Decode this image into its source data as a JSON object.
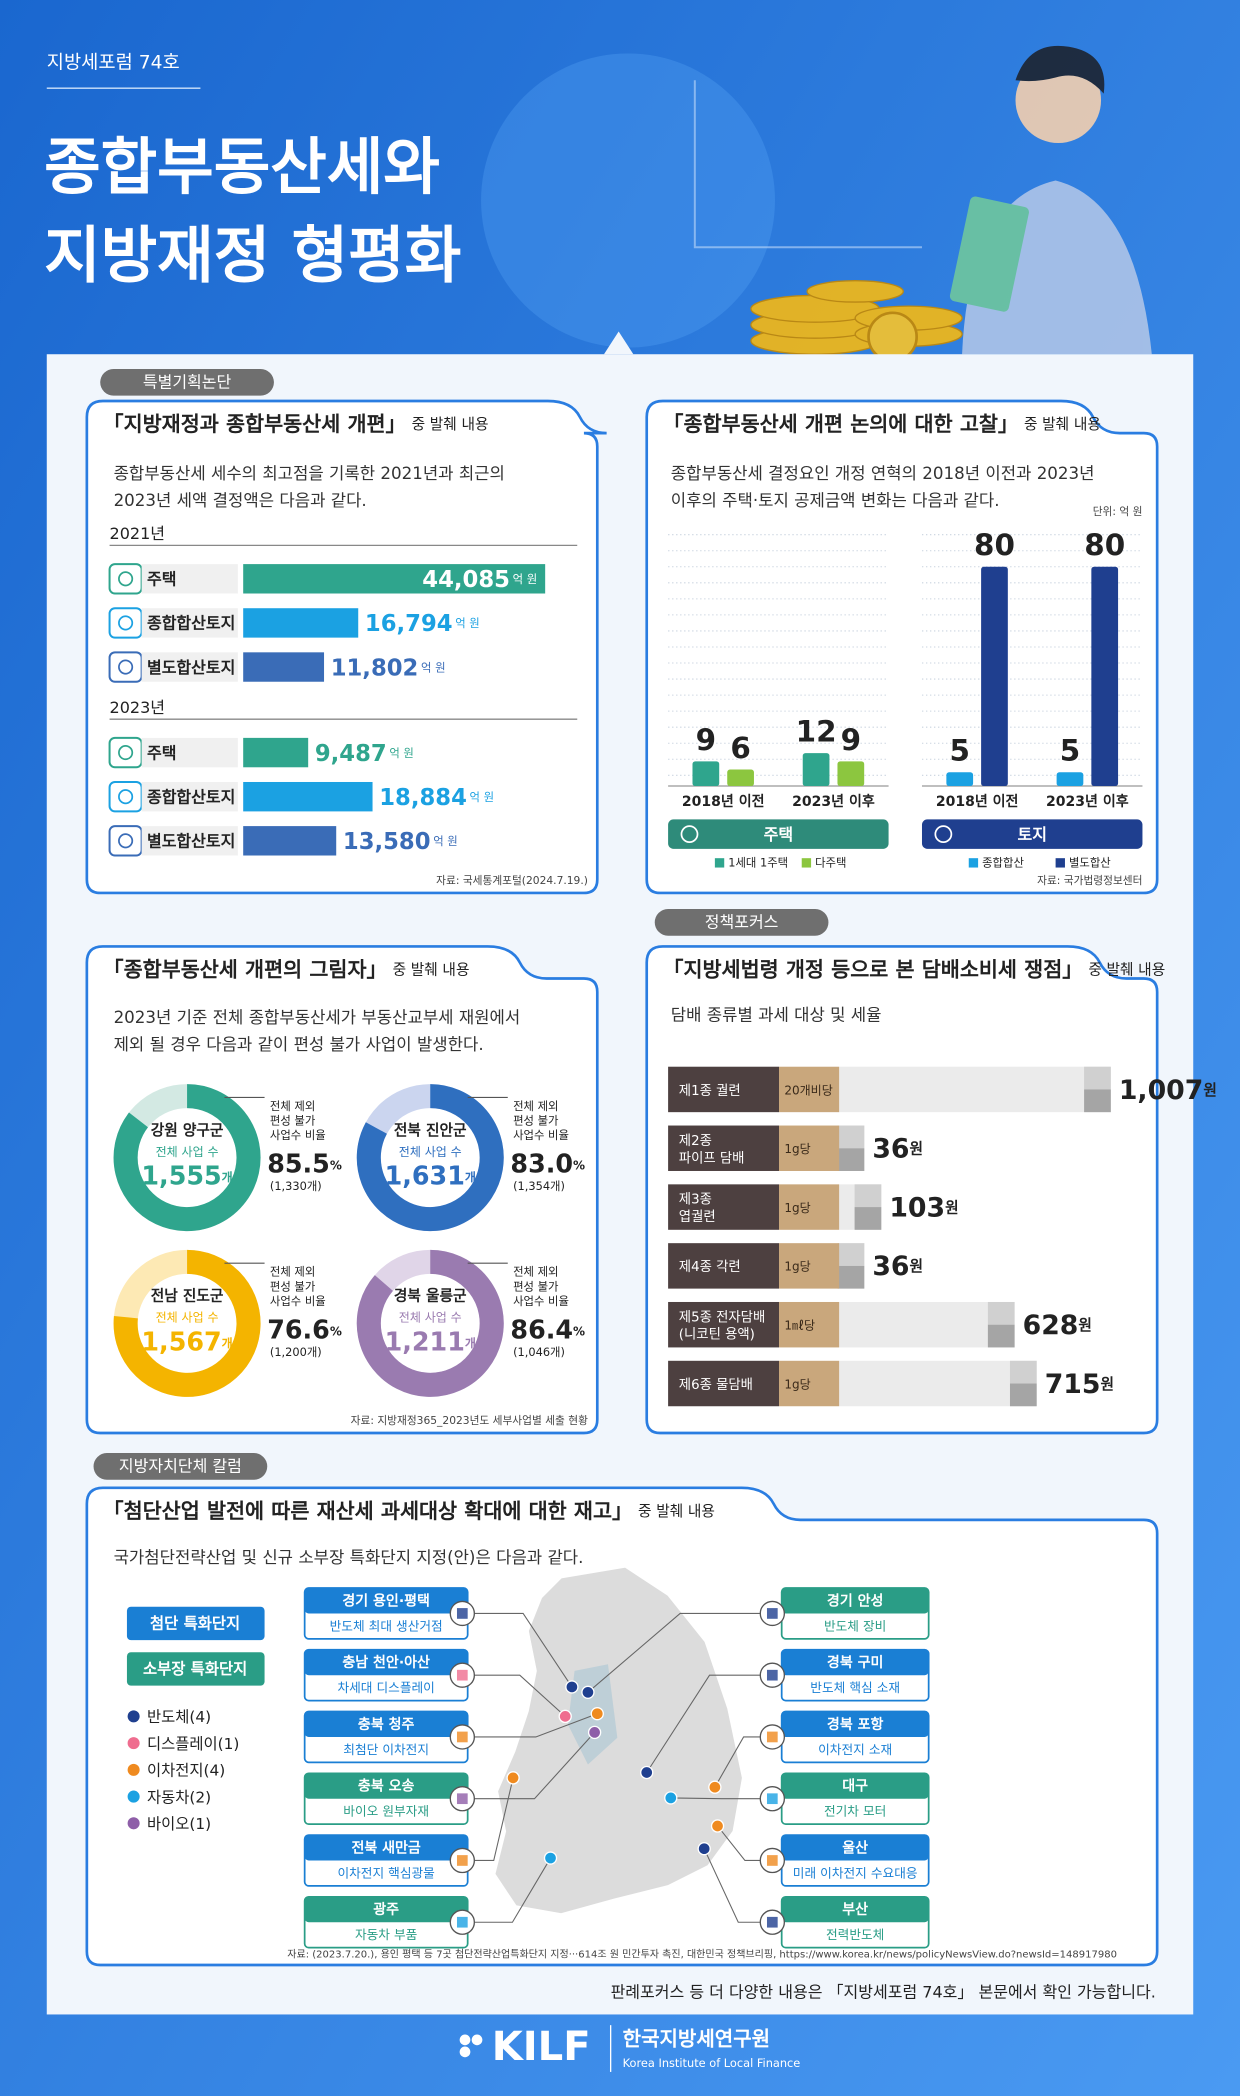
{
  "header": {
    "issue": "지방세포럼 74호",
    "title_lines": [
      "종합부동산세와",
      "지방재정 형평화"
    ]
  },
  "tags": {
    "special": "특별기획논단",
    "policy": "정책포커스",
    "column": "지방자치단체 칼럼"
  },
  "article1": {
    "title": "「지방재정과 종합부동산세 개편」",
    "suffix": "중 발췌 내용",
    "intro_lines": [
      "종합부동산세 세수의 최고점을 기록한 2021년과 최근의",
      "2023년 세액 결정액은 다음과 같다."
    ],
    "unit": "억 원",
    "groups": [
      {
        "year": "2021년",
        "items": [
          {
            "label": "주택",
            "value": 44085,
            "value_label": "44,085",
            "color": "#2fa58d"
          },
          {
            "label": "종합합산토지",
            "value": 16794,
            "value_label": "16,794",
            "color": "#1ba1e2"
          },
          {
            "label": "별도합산토지",
            "value": 11802,
            "value_label": "11,802",
            "color": "#3a6cb7"
          }
        ]
      },
      {
        "year": "2023년",
        "items": [
          {
            "label": "주택",
            "value": 9487,
            "value_label": "9,487",
            "color": "#2fa58d"
          },
          {
            "label": "종합합산토지",
            "value": 18884,
            "value_label": "18,884",
            "color": "#1ba1e2"
          },
          {
            "label": "별도합산토지",
            "value": 13580,
            "value_label": "13,580",
            "color": "#3a6cb7"
          }
        ]
      }
    ],
    "source": "자료: 국세통계포털(2024.7.19.)"
  },
  "article2": {
    "title": "「종합부동산세 개편 논의에 대한 고찰」",
    "suffix": "중 발췌 내용",
    "intro_lines": [
      "종합부동산세 결정요인 개정 연혁의 2018년 이전과 2023년",
      "이후의 주택·토지 공제금액 변화는 다음과 같다."
    ],
    "unit": "단위: 억 원",
    "groups": [
      {
        "name": "주택",
        "color": "#2e8b7a",
        "categories": [
          "2018년 이전",
          "2023년 이후"
        ],
        "series": [
          {
            "name": "1세대 1주택",
            "color": "#2fa58d",
            "values": [
              9,
              12
            ]
          },
          {
            "name": "다주택",
            "color": "#8cc63f",
            "values": [
              6,
              9
            ]
          }
        ]
      },
      {
        "name": "토지",
        "color": "#1f3f8f",
        "categories": [
          "2018년 이전",
          "2023년 이후"
        ],
        "series": [
          {
            "name": "종합합산",
            "color": "#1ba1e2",
            "values": [
              5,
              5
            ]
          },
          {
            "name": "별도합산",
            "color": "#1f3f8f",
            "values": [
              80,
              80
            ]
          }
        ]
      }
    ],
    "source": "자료: 국가법령정보센터"
  },
  "article3": {
    "title": "「종합부동산세 개편의 그림자」",
    "suffix": "중 발췌 내용",
    "intro_lines": [
      "2023년 기준 전체 종합부동산세가 부동산교부세 재원에서",
      "제외 될 경우 다음과 같이 편성 불가 사업이 발생한다."
    ],
    "total_label": "전체 사업 수",
    "total_unit": "개",
    "ratio_label_lines": [
      "전체 제외",
      "편성 불가",
      "사업수 비율"
    ],
    "ratio_unit": "%",
    "regions": [
      {
        "name": "강원 양구군",
        "total": "1,555",
        "ratio": 85.5,
        "count_label": "(1,330개)",
        "color": "#2fa58d",
        "light": "#d3e9e3"
      },
      {
        "name": "전북 진안군",
        "total": "1,631",
        "ratio": 83,
        "ratio_label": "83.0",
        "count_label": "(1,354개)",
        "color": "#2f6fbf",
        "light": "#cbd5ef"
      },
      {
        "name": "전남 진도군",
        "total": "1,567",
        "ratio": 76.6,
        "count_label": "(1,200개)",
        "color": "#f4b400",
        "light": "#fde9b4"
      },
      {
        "name": "경북 울릉군",
        "total": "1,211",
        "ratio": 86.4,
        "count_label": "(1,046개)",
        "color": "#9a7bb0",
        "light": "#e0d5e8"
      }
    ],
    "source": "자료: 지방재정365_2023년도 세부사업별 세출 현황"
  },
  "article4": {
    "title": "「지방세법령 개정 등으로 본 담배소비세 쟁점」",
    "suffix": "중 발췌 내용",
    "subtitle": "담배 종류별 과세 대상 및 세율",
    "unit": "원",
    "rows": [
      {
        "name_lines": [
          "제1종 궐련"
        ],
        "basis": "20개비당",
        "value": 1007,
        "value_label": "1,007"
      },
      {
        "name_lines": [
          "제2종",
          "파이프 담배"
        ],
        "basis": "1g당",
        "value": 36
      },
      {
        "name_lines": [
          "제3종",
          "엽궐련"
        ],
        "basis": "1g당",
        "value": 103
      },
      {
        "name_lines": [
          "제4종 각련"
        ],
        "basis": "1g당",
        "value": 36
      },
      {
        "name_lines": [
          "제5종 전자담배",
          "(니코틴 용액)"
        ],
        "basis": "1㎖당",
        "value": 628
      },
      {
        "name_lines": [
          "제6종 물담배"
        ],
        "basis": "1g당",
        "value": 715
      }
    ]
  },
  "article5": {
    "title": "「첨단산업 발전에 따른 재산세 과세대상 확대에 대한 재고」",
    "suffix": "중 발췌 내용",
    "intro": "국가첨단전략산업 및 신규 소부장 특화단지 지정(안)은 다음과 같다.",
    "zone_types": [
      {
        "name": "첨단 특화단지",
        "color": "#1a7fd4"
      },
      {
        "name": "소부장 특화단지",
        "color": "#2a9d86"
      }
    ],
    "industries": [
      {
        "name": "반도체(4)",
        "color": "#1f3f8f"
      },
      {
        "name": "디스플레이(1)",
        "color": "#ef6d8f"
      },
      {
        "name": "이차전지(4)",
        "color": "#ef8a1f"
      },
      {
        "name": "자동차(2)",
        "color": "#1ba1e2"
      },
      {
        "name": "바이오(1)",
        "color": "#8e5ea8"
      }
    ],
    "sites_left": [
      {
        "region": "경기 용인·평택",
        "desc": "반도체 최대 생산거점",
        "zone": 0,
        "industry": 0
      },
      {
        "region": "충남 천안·아산",
        "desc": "차세대 디스플레이",
        "zone": 0,
        "industry": 1
      },
      {
        "region": "충북 청주",
        "desc": "최첨단 이차전지",
        "zone": 0,
        "industry": 2
      },
      {
        "region": "충북 오송",
        "desc": "바이오 원부자재",
        "zone": 1,
        "industry": 4
      },
      {
        "region": "전북 새만금",
        "desc": "이차전지 핵심광물",
        "zone": 0,
        "industry": 2
      },
      {
        "region": "광주",
        "desc": "자동차 부품",
        "zone": 1,
        "industry": 3
      }
    ],
    "sites_right": [
      {
        "region": "경기 안성",
        "desc": "반도체 장비",
        "zone": 1,
        "industry": 0
      },
      {
        "region": "경북 구미",
        "desc": "반도체 핵심 소재",
        "zone": 0,
        "industry": 0
      },
      {
        "region": "경북 포항",
        "desc": "이차전지 소재",
        "zone": 0,
        "industry": 2
      },
      {
        "region": "대구",
        "desc": "전기차 모터",
        "zone": 1,
        "industry": 3
      },
      {
        "region": "울산",
        "desc": "미래 이차전지 수요대응",
        "zone": 0,
        "industry": 2
      },
      {
        "region": "부산",
        "desc": "전력반도체",
        "zone": 1,
        "industry": 0
      }
    ],
    "source": "자료: (2023.7.20.), 용인 평택 등 7곳 첨단전략산업특화단지 지정···614조 원 민간투자 촉진, 대한민국 정책브리핑, https://www.korea.kr/news/policyNewsView.do?newsId=148917980"
  },
  "footer": {
    "note": "판례포커스 등 더 다양한 내용은 「지방세포럼 74호」 본문에서 확인 가능합니다.",
    "logo": "KILF",
    "org_kr": "한국지방세연구원",
    "org_en": "Korea Institute of Local Finance"
  }
}
